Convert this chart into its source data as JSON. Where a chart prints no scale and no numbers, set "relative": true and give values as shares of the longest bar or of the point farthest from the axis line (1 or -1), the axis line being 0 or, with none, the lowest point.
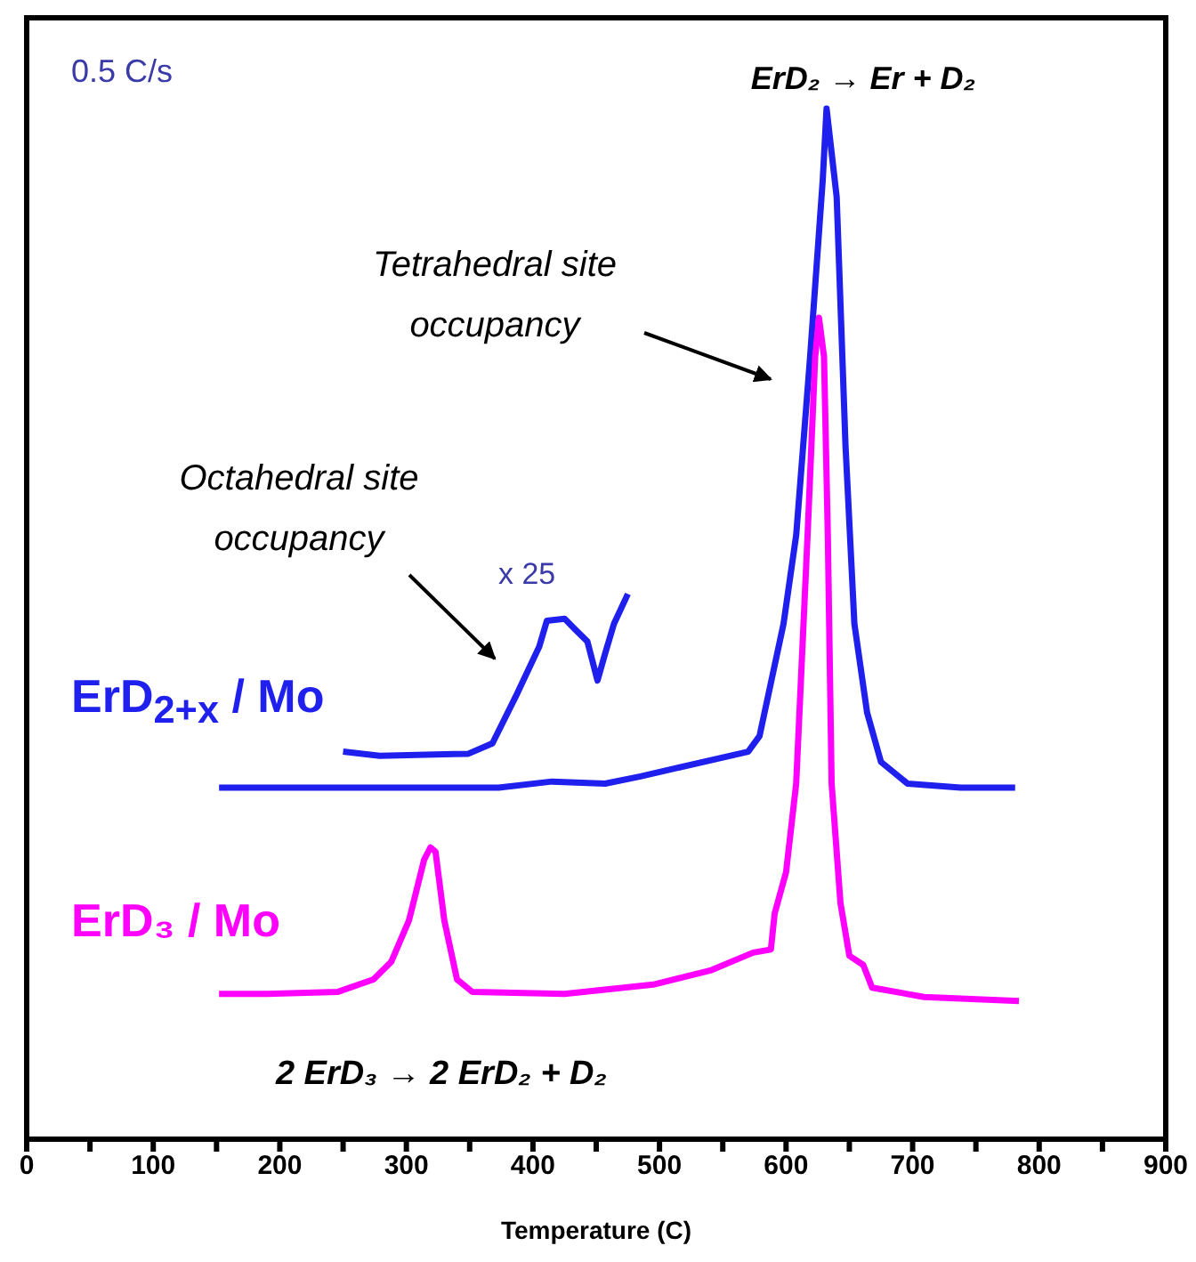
{
  "chart_data": {
    "type": "line",
    "relative": true,
    "xlabel": "Temperature (C)",
    "xlim": [
      0,
      900
    ],
    "xticks": [
      0,
      {
        "value": 50,
        "label": null
      },
      100,
      {
        "value": 150,
        "label": null
      },
      200,
      {
        "value": 250,
        "label": null
      },
      300,
      {
        "value": 350,
        "label": null
      },
      400,
      {
        "value": 450,
        "label": null
      },
      500,
      {
        "value": 550,
        "label": null
      },
      600,
      {
        "value": 650,
        "label": null
      },
      700,
      {
        "value": 750,
        "label": null
      },
      800,
      {
        "value": 850,
        "label": null
      },
      900
    ],
    "series": [
      {
        "name": "ErD$_{2+x}$ / Mo",
        "color": "#1f1fee",
        "x": [
          152,
          373,
          415,
          457,
          485,
          513,
          570,
          579,
          598,
          608,
          619,
          629,
          632,
          640,
          647,
          654,
          664,
          675,
          696,
          738,
          781
        ],
        "values": [
          0.341,
          0.341,
          0.347,
          0.345,
          0.352,
          0.36,
          0.376,
          0.391,
          0.5,
          0.586,
          0.759,
          0.931,
          1,
          0.914,
          0.672,
          0.5,
          0.414,
          0.366,
          0.345,
          0.341,
          0.341
        ]
      },
      {
        "color": "#1f1fee",
        "x": [
          250,
          279,
          349,
          368,
          387,
          405,
          411,
          425,
          433,
          443,
          451,
          457,
          464,
          475
        ],
        "values": [
          0.376,
          0.372,
          0.374,
          0.384,
          0.431,
          0.478,
          0.503,
          0.505,
          0.495,
          0.483,
          0.445,
          0.471,
          0.5,
          0.529
        ]
      },
      {
        "name": "ErD₃ / Mo",
        "color": "#ff00ff",
        "x": [
          152,
          190,
          246,
          274,
          288,
          302,
          314,
          319,
          323,
          330,
          340,
          352,
          425,
          495,
          541,
          574,
          588,
          591,
          600,
          608,
          617,
          623,
          626,
          630,
          633,
          636,
          643,
          650,
          661,
          668,
          709,
          784
        ],
        "values": [
          0.141,
          0.141,
          0.143,
          0.155,
          0.172,
          0.212,
          0.271,
          0.283,
          0.279,
          0.212,
          0.155,
          0.143,
          0.141,
          0.15,
          0.164,
          0.181,
          0.184,
          0.219,
          0.259,
          0.345,
          0.586,
          0.759,
          0.797,
          0.759,
          0.586,
          0.345,
          0.229,
          0.178,
          0.169,
          0.147,
          0.138,
          0.134
        ]
      }
    ],
    "annotations": [
      "0.5 C/s",
      "ErD₂ → Er + D₂",
      "Tetrahedral site occupancy",
      "Octahedral site occupancy",
      "x 25",
      "2 ErD₃ → 2 ErD₂ + D₂"
    ]
  }
}
